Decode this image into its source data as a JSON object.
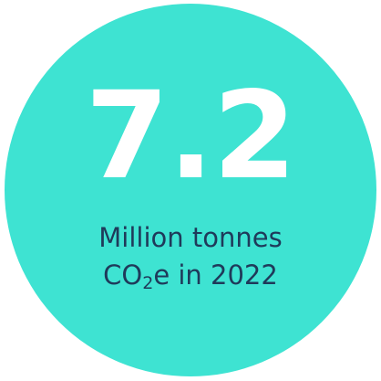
{
  "stat": {
    "value": "7.2",
    "caption_line1": "Million tonnes",
    "caption_line2_prefix": "CO",
    "caption_line2_subscript": "2",
    "caption_line2_suffix": "e in 2022"
  },
  "colors": {
    "circle": "#3ee3d2",
    "value_text": "#ffffff",
    "caption_text": "#1f3a5a"
  }
}
